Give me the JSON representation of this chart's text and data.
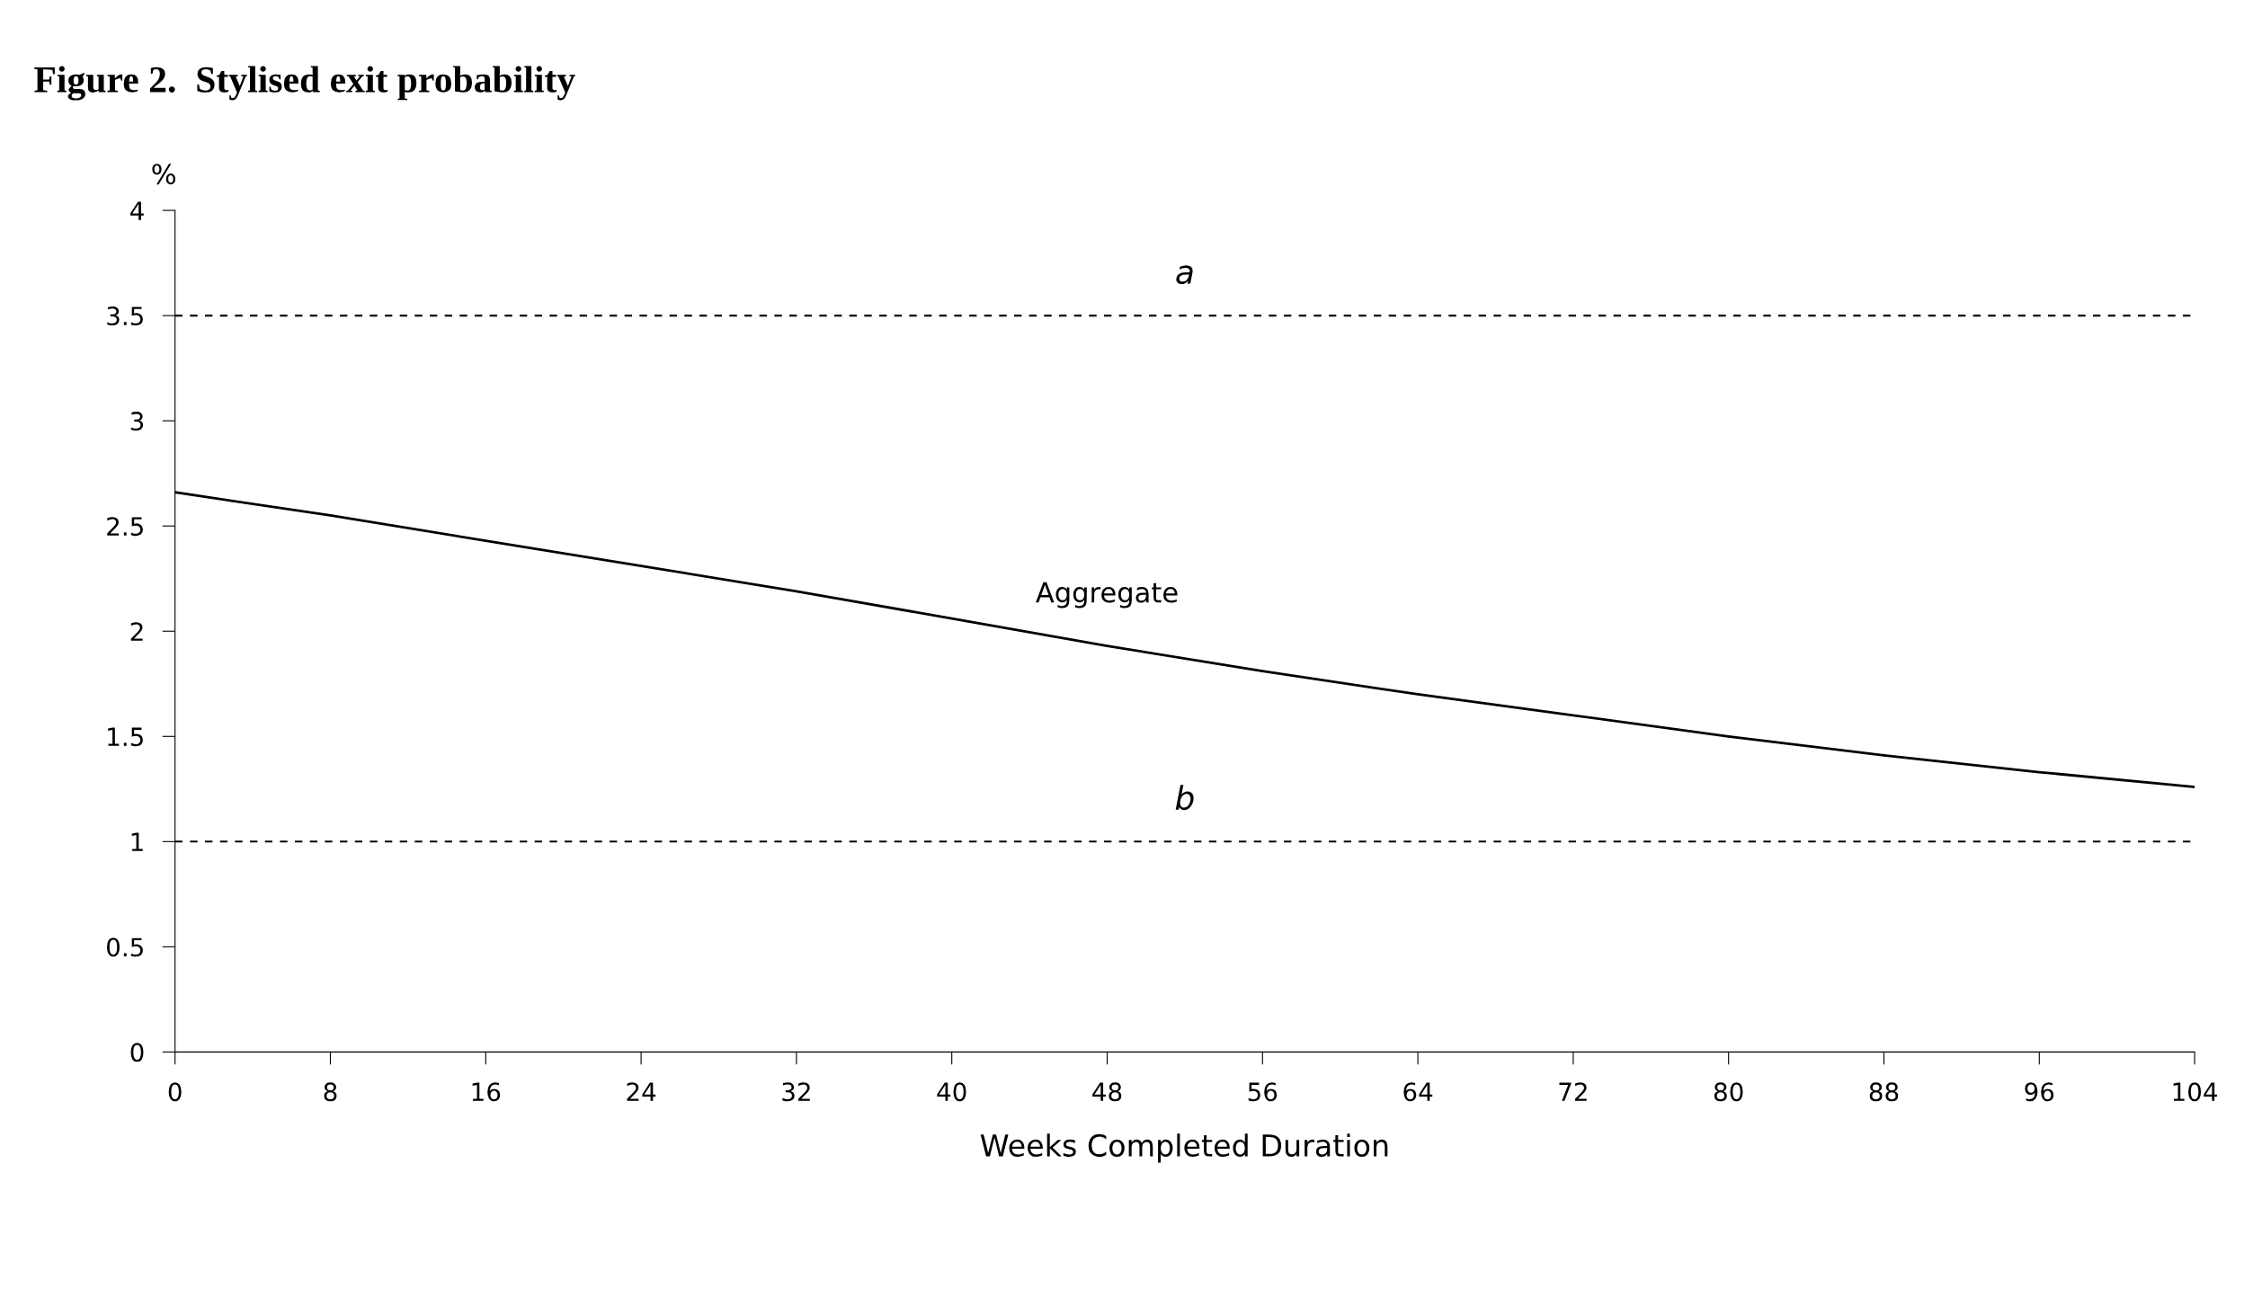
{
  "chart_data": {
    "type": "line",
    "title": "Figure 2.  Stylised exit probability",
    "xlabel": "Weeks Completed Duration",
    "ylabel": "%",
    "x": [
      0,
      8,
      16,
      24,
      32,
      40,
      48,
      56,
      64,
      72,
      80,
      88,
      96,
      104
    ],
    "series": [
      {
        "name": "Aggregate",
        "color": "#000000",
        "values": [
          2.66,
          2.55,
          2.43,
          2.31,
          2.19,
          2.06,
          1.93,
          1.81,
          1.7,
          1.6,
          1.5,
          1.41,
          1.33,
          1.26
        ]
      }
    ],
    "xlim": [
      0,
      104
    ],
    "ylim": [
      0,
      4
    ],
    "xticks": [
      0,
      8,
      16,
      24,
      32,
      40,
      48,
      56,
      64,
      72,
      80,
      88,
      96,
      104
    ],
    "yticks": [
      0,
      0.5,
      1,
      1.5,
      2,
      2.5,
      3,
      3.5,
      4
    ],
    "ref_lines": [
      {
        "axis": "y",
        "value": 3.5,
        "label": "a",
        "color": "#000000",
        "line_style": "dashed"
      },
      {
        "axis": "y",
        "value": 1,
        "label": "b",
        "color": "#000000",
        "line_style": "dashed"
      }
    ],
    "grid": false,
    "marker": "none",
    "line_style": "solid"
  }
}
